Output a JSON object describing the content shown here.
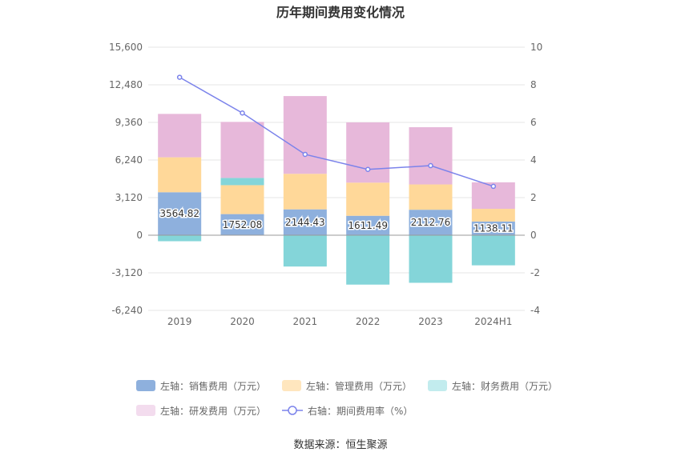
{
  "title": "历年期间费用变化情况",
  "source": "数据来源：恒生聚源",
  "colors": {
    "sales": "#8eb0dd",
    "mgmt": "#ffd899",
    "finance": "#84d5d9",
    "rd": "#e7b8da",
    "rate": "#7b83eb",
    "grid": "#e6e6e6",
    "axis_text": "#666666"
  },
  "legend": [
    {
      "label": "左轴：销售费用（万元）",
      "color": "#8eb0dd",
      "icon": "bar-swatch-icon"
    },
    {
      "label": "左轴：管理费用（万元）",
      "color": "#ffe6be",
      "icon": "bar-swatch-icon"
    },
    {
      "label": "左轴：财务费用（万元）",
      "color": "#c2ecee",
      "icon": "bar-swatch-icon"
    },
    {
      "label": "左轴：研发费用（万元）",
      "color": "#f3dcee",
      "icon": "bar-swatch-icon"
    },
    {
      "label": "右轴：期间费用率（%）",
      "color": "#7b83eb",
      "icon": "line-marker-icon"
    }
  ],
  "chart_data": {
    "type": "bar",
    "stacked": true,
    "categories": [
      "2019",
      "2020",
      "2021",
      "2022",
      "2023",
      "2024H1"
    ],
    "left_axis": {
      "ylim": [
        -6240,
        15600
      ],
      "ticks": [
        "15,600",
        "12,480",
        "9,360",
        "6,240",
        "3,120",
        "0",
        "-3,120",
        "-6,240"
      ],
      "tick_values": [
        15600,
        12480,
        9360,
        6240,
        3120,
        0,
        -3120,
        -6240
      ]
    },
    "right_axis": {
      "ylim": [
        -4,
        10
      ],
      "ticks": [
        "10",
        "8",
        "6",
        "4",
        "2",
        "0",
        "-2",
        "-4"
      ],
      "tick_values": [
        10,
        8,
        6,
        4,
        2,
        0,
        -2,
        -4
      ]
    },
    "series": [
      {
        "name": "左轴：销售费用（万元）",
        "key": "sales",
        "axis": "left",
        "values": [
          3564.82,
          1752.08,
          2144.43,
          1611.49,
          2112.76,
          1138.11
        ],
        "labels": [
          "3564.82",
          "1752.08",
          "2144.43",
          "1611.49",
          "2112.76",
          "1138.11"
        ]
      },
      {
        "name": "左轴：管理费用（万元）",
        "key": "mgmt",
        "axis": "left",
        "values": [
          2900,
          2400,
          2950,
          2750,
          2100,
          1050
        ]
      },
      {
        "name": "左轴：财务费用（万元）",
        "key": "finance",
        "axis": "left",
        "values": [
          -500,
          600,
          -2600,
          -4100,
          -3950,
          -2500
        ]
      },
      {
        "name": "左轴：研发费用（万元）",
        "key": "rd",
        "axis": "left",
        "values": [
          3600,
          4650,
          6450,
          5000,
          4750,
          2200
        ]
      },
      {
        "name": "右轴：期间费用率（%）",
        "key": "rate",
        "axis": "right",
        "type": "line",
        "values": [
          8.4,
          6.5,
          4.3,
          3.5,
          3.7,
          2.6
        ]
      }
    ],
    "grid": true,
    "legend_position": "bottom"
  }
}
